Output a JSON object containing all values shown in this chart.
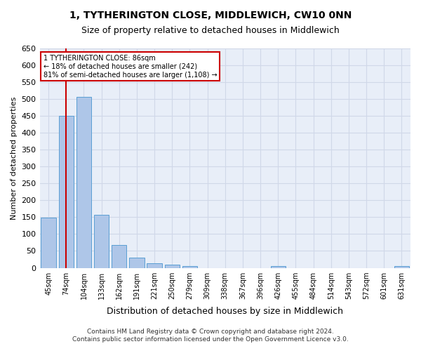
{
  "title": "1, TYTHERINGTON CLOSE, MIDDLEWICH, CW10 0NN",
  "subtitle": "Size of property relative to detached houses in Middlewich",
  "xlabel": "Distribution of detached houses by size in Middlewich",
  "ylabel": "Number of detached properties",
  "property_size": 86,
  "property_line_x": 86,
  "annotation_line1": "1 TYTHERINGTON CLOSE: 86sqm",
  "annotation_line2": "← 18% of detached houses are smaller (242)",
  "annotation_line3": "81% of semi-detached houses are larger (1,108) →",
  "footer_line1": "Contains HM Land Registry data © Crown copyright and database right 2024.",
  "footer_line2": "Contains public sector information licensed under the Open Government Licence v3.0.",
  "bar_color": "#aec6e8",
  "bar_edge_color": "#5a9fd4",
  "red_line_color": "#cc0000",
  "annotation_box_color": "#cc0000",
  "background_color": "#ffffff",
  "grid_color": "#d0d8e8",
  "categories": [
    "45sqm",
    "74sqm",
    "104sqm",
    "133sqm",
    "162sqm",
    "191sqm",
    "221sqm",
    "250sqm",
    "279sqm",
    "309sqm",
    "338sqm",
    "367sqm",
    "396sqm",
    "426sqm",
    "455sqm",
    "484sqm",
    "514sqm",
    "543sqm",
    "572sqm",
    "601sqm",
    "631sqm"
  ],
  "values": [
    148,
    450,
    507,
    158,
    68,
    30,
    13,
    9,
    5,
    0,
    0,
    0,
    0,
    6,
    0,
    0,
    0,
    0,
    0,
    0,
    6
  ],
  "ylim": [
    0,
    650
  ],
  "yticks": [
    0,
    50,
    100,
    150,
    200,
    250,
    300,
    350,
    400,
    450,
    500,
    550,
    600,
    650
  ]
}
